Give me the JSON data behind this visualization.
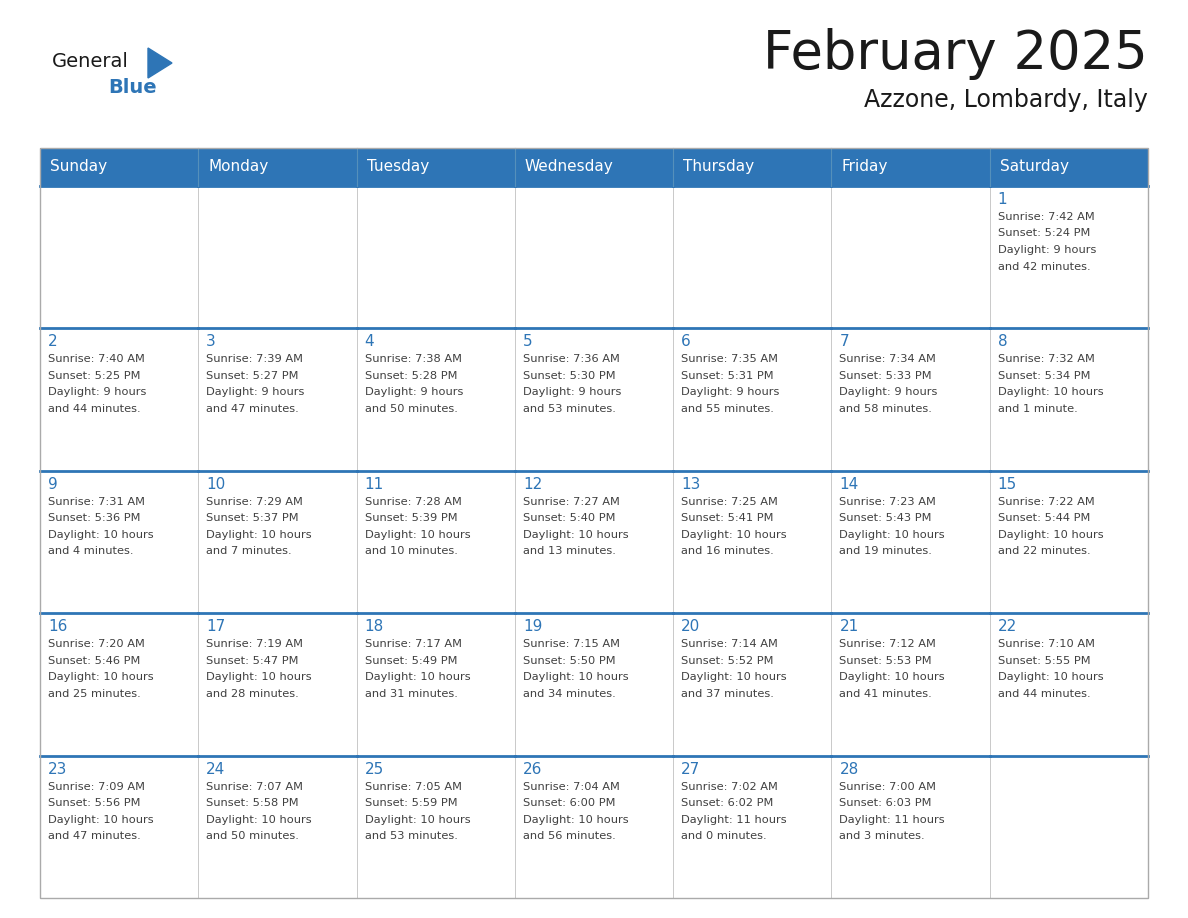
{
  "title": "February 2025",
  "subtitle": "Azzone, Lombardy, Italy",
  "days_of_week": [
    "Sunday",
    "Monday",
    "Tuesday",
    "Wednesday",
    "Thursday",
    "Friday",
    "Saturday"
  ],
  "header_bg": "#2E75B6",
  "header_text": "#FFFFFF",
  "cell_bg_white": "#FFFFFF",
  "border_color": "#2E75B6",
  "day_number_color": "#2E75B6",
  "cell_text_color": "#404040",
  "title_color": "#1a1a1a",
  "logo_general_color": "#1a1a1a",
  "logo_blue_color": "#2E75B6",
  "weeks": [
    [
      {
        "day": null,
        "info": null
      },
      {
        "day": null,
        "info": null
      },
      {
        "day": null,
        "info": null
      },
      {
        "day": null,
        "info": null
      },
      {
        "day": null,
        "info": null
      },
      {
        "day": null,
        "info": null
      },
      {
        "day": 1,
        "info": "Sunrise: 7:42 AM\nSunset: 5:24 PM\nDaylight: 9 hours\nand 42 minutes."
      }
    ],
    [
      {
        "day": 2,
        "info": "Sunrise: 7:40 AM\nSunset: 5:25 PM\nDaylight: 9 hours\nand 44 minutes."
      },
      {
        "day": 3,
        "info": "Sunrise: 7:39 AM\nSunset: 5:27 PM\nDaylight: 9 hours\nand 47 minutes."
      },
      {
        "day": 4,
        "info": "Sunrise: 7:38 AM\nSunset: 5:28 PM\nDaylight: 9 hours\nand 50 minutes."
      },
      {
        "day": 5,
        "info": "Sunrise: 7:36 AM\nSunset: 5:30 PM\nDaylight: 9 hours\nand 53 minutes."
      },
      {
        "day": 6,
        "info": "Sunrise: 7:35 AM\nSunset: 5:31 PM\nDaylight: 9 hours\nand 55 minutes."
      },
      {
        "day": 7,
        "info": "Sunrise: 7:34 AM\nSunset: 5:33 PM\nDaylight: 9 hours\nand 58 minutes."
      },
      {
        "day": 8,
        "info": "Sunrise: 7:32 AM\nSunset: 5:34 PM\nDaylight: 10 hours\nand 1 minute."
      }
    ],
    [
      {
        "day": 9,
        "info": "Sunrise: 7:31 AM\nSunset: 5:36 PM\nDaylight: 10 hours\nand 4 minutes."
      },
      {
        "day": 10,
        "info": "Sunrise: 7:29 AM\nSunset: 5:37 PM\nDaylight: 10 hours\nand 7 minutes."
      },
      {
        "day": 11,
        "info": "Sunrise: 7:28 AM\nSunset: 5:39 PM\nDaylight: 10 hours\nand 10 minutes."
      },
      {
        "day": 12,
        "info": "Sunrise: 7:27 AM\nSunset: 5:40 PM\nDaylight: 10 hours\nand 13 minutes."
      },
      {
        "day": 13,
        "info": "Sunrise: 7:25 AM\nSunset: 5:41 PM\nDaylight: 10 hours\nand 16 minutes."
      },
      {
        "day": 14,
        "info": "Sunrise: 7:23 AM\nSunset: 5:43 PM\nDaylight: 10 hours\nand 19 minutes."
      },
      {
        "day": 15,
        "info": "Sunrise: 7:22 AM\nSunset: 5:44 PM\nDaylight: 10 hours\nand 22 minutes."
      }
    ],
    [
      {
        "day": 16,
        "info": "Sunrise: 7:20 AM\nSunset: 5:46 PM\nDaylight: 10 hours\nand 25 minutes."
      },
      {
        "day": 17,
        "info": "Sunrise: 7:19 AM\nSunset: 5:47 PM\nDaylight: 10 hours\nand 28 minutes."
      },
      {
        "day": 18,
        "info": "Sunrise: 7:17 AM\nSunset: 5:49 PM\nDaylight: 10 hours\nand 31 minutes."
      },
      {
        "day": 19,
        "info": "Sunrise: 7:15 AM\nSunset: 5:50 PM\nDaylight: 10 hours\nand 34 minutes."
      },
      {
        "day": 20,
        "info": "Sunrise: 7:14 AM\nSunset: 5:52 PM\nDaylight: 10 hours\nand 37 minutes."
      },
      {
        "day": 21,
        "info": "Sunrise: 7:12 AM\nSunset: 5:53 PM\nDaylight: 10 hours\nand 41 minutes."
      },
      {
        "day": 22,
        "info": "Sunrise: 7:10 AM\nSunset: 5:55 PM\nDaylight: 10 hours\nand 44 minutes."
      }
    ],
    [
      {
        "day": 23,
        "info": "Sunrise: 7:09 AM\nSunset: 5:56 PM\nDaylight: 10 hours\nand 47 minutes."
      },
      {
        "day": 24,
        "info": "Sunrise: 7:07 AM\nSunset: 5:58 PM\nDaylight: 10 hours\nand 50 minutes."
      },
      {
        "day": 25,
        "info": "Sunrise: 7:05 AM\nSunset: 5:59 PM\nDaylight: 10 hours\nand 53 minutes."
      },
      {
        "day": 26,
        "info": "Sunrise: 7:04 AM\nSunset: 6:00 PM\nDaylight: 10 hours\nand 56 minutes."
      },
      {
        "day": 27,
        "info": "Sunrise: 7:02 AM\nSunset: 6:02 PM\nDaylight: 11 hours\nand 0 minutes."
      },
      {
        "day": 28,
        "info": "Sunrise: 7:00 AM\nSunset: 6:03 PM\nDaylight: 11 hours\nand 3 minutes."
      },
      {
        "day": null,
        "info": null
      }
    ]
  ]
}
